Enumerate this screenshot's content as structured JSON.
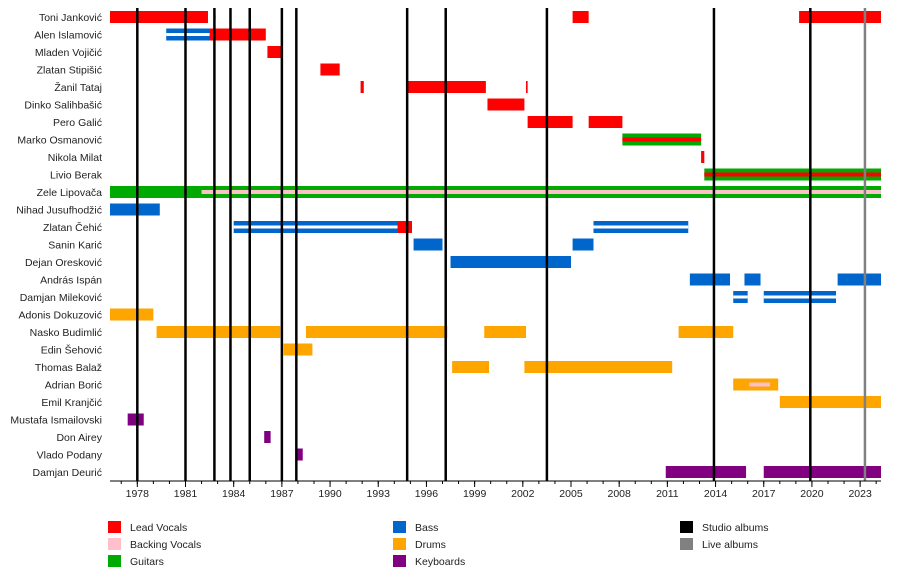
{
  "chart_data": {
    "type": "timeline",
    "title": "",
    "xlabel": "",
    "ylabel": "",
    "xlim": [
      1976.3,
      2024.3
    ],
    "x_ticks": [
      1978,
      1981,
      1984,
      1987,
      1990,
      1993,
      1996,
      1999,
      2002,
      2005,
      2008,
      2011,
      2014,
      2017,
      2020,
      2023
    ],
    "grid": false,
    "legend_position": "bottom",
    "colors": {
      "Lead Vocals": "#ff0000",
      "Backing Vocals": "#ffc0cb",
      "Guitars": "#00aa00",
      "Bass": "#0066cc",
      "Drums": "#ffa500",
      "Keyboards": "#800080",
      "Studio albums": "#000000",
      "Live albums": "#808080"
    },
    "members": [
      "Toni Janković",
      "Alen Islamović",
      "Mladen Vojičić",
      "Zlatan Stipišić",
      "Žanil Tataj",
      "Dinko Salihbašić",
      "Pero Galić",
      "Marko Osmanović",
      "Nikola Milat",
      "Livio Berak",
      "Zele Lipovača",
      "Nihad Jusufhodžić",
      "Zlatan Čehić",
      "Sanin Karić",
      "Dejan Oresković",
      "András Ispán",
      "Damjan Mileković",
      "Adonis Dokuzović",
      "Nasko Budimlić",
      "Edin Šehović",
      "Thomas Balaž",
      "Adrian Borić",
      "Emil Kranjčić",
      "Mustafa Ismailovski",
      "Don Airey",
      "Vlado Podany",
      "Damjan Deurić"
    ],
    "bars": [
      {
        "member": "Toni Janković",
        "role": "Lead Vocals",
        "start": 1976.3,
        "end": 1982.4
      },
      {
        "member": "Toni Janković",
        "role": "Backing Vocals",
        "start": 1982.8,
        "end": 1982.9
      },
      {
        "member": "Toni Janković",
        "role": "Lead Vocals",
        "start": 2005.1,
        "end": 2006.1
      },
      {
        "member": "Toni Janković",
        "role": "Lead Vocals",
        "start": 2019.2,
        "end": 2024.3
      },
      {
        "member": "Alen Islamović",
        "role": "Bass",
        "start": 1979.8,
        "end": 1983.9
      },
      {
        "member": "Alen Islamović",
        "role": "Lead Vocals",
        "start": 1982.5,
        "end": 1986.0
      },
      {
        "member": "Mladen Vojičić",
        "role": "Lead Vocals",
        "start": 1986.1,
        "end": 1987.0
      },
      {
        "member": "Zlatan Stipišić",
        "role": "Lead Vocals",
        "start": 1989.4,
        "end": 1990.6
      },
      {
        "member": "Žanil Tataj",
        "role": "Lead Vocals",
        "start": 1991.9,
        "end": 1992.1
      },
      {
        "member": "Žanil Tataj",
        "role": "Lead Vocals",
        "start": 1994.8,
        "end": 1999.7
      },
      {
        "member": "Žanil Tataj",
        "role": "Lead Vocals",
        "start": 2002.2,
        "end": 2002.3
      },
      {
        "member": "Dinko Salihbašić",
        "role": "Lead Vocals",
        "start": 1999.8,
        "end": 2002.1
      },
      {
        "member": "Pero Galić",
        "role": "Lead Vocals",
        "start": 2002.3,
        "end": 2005.1
      },
      {
        "member": "Pero Galić",
        "role": "Lead Vocals",
        "start": 2006.1,
        "end": 2008.2
      },
      {
        "member": "Marko Osmanović",
        "role": "Guitars",
        "start": 2008.2,
        "end": 2013.1
      },
      {
        "member": "Marko Osmanović",
        "role": "Lead Vocals",
        "start": 2008.2,
        "end": 2013.1
      },
      {
        "member": "Nikola Milat",
        "role": "Lead Vocals",
        "start": 2013.1,
        "end": 2013.3
      },
      {
        "member": "Livio Berak",
        "role": "Guitars",
        "start": 2013.3,
        "end": 2024.3
      },
      {
        "member": "Livio Berak",
        "role": "Lead Vocals",
        "start": 2013.3,
        "end": 2024.3
      },
      {
        "member": "Zele Lipovača",
        "role": "Guitars",
        "start": 1976.3,
        "end": 2024.3
      },
      {
        "member": "Zele Lipovača",
        "role": "Backing Vocals",
        "start": 1982.0,
        "end": 2024.3
      },
      {
        "member": "Nihad Jusufhodžić",
        "role": "Bass",
        "start": 1976.3,
        "end": 1979.4
      },
      {
        "member": "Zlatan Čehić",
        "role": "Bass",
        "start": 1984.0,
        "end": 1995.1
      },
      {
        "member": "Zlatan Čehić",
        "role": "Lead Vocals",
        "start": 1994.2,
        "end": 1995.1
      },
      {
        "member": "Zlatan Čehić",
        "role": "Bass",
        "start": 2006.4,
        "end": 2012.3
      },
      {
        "member": "Sanin Karić",
        "role": "Bass",
        "start": 1995.2,
        "end": 1997.0
      },
      {
        "member": "Sanin Karić",
        "role": "Bass",
        "start": 2005.1,
        "end": 2006.4
      },
      {
        "member": "Dejan Oresković",
        "role": "Bass",
        "start": 1997.5,
        "end": 2005.0
      },
      {
        "member": "András Ispán",
        "role": "Bass",
        "start": 2012.4,
        "end": 2014.9
      },
      {
        "member": "András Ispán",
        "role": "Bass",
        "start": 2015.8,
        "end": 2016.8
      },
      {
        "member": "András Ispán",
        "role": "Bass",
        "start": 2021.6,
        "end": 2024.3
      },
      {
        "member": "Damjan Mileković",
        "role": "Bass",
        "start": 2015.1,
        "end": 2016.0
      },
      {
        "member": "Damjan Mileković",
        "role": "Bass",
        "start": 2017.0,
        "end": 2021.5
      },
      {
        "member": "Adonis Dokuzović",
        "role": "Drums",
        "start": 1976.3,
        "end": 1979.0
      },
      {
        "member": "Nasko Budimlić",
        "role": "Drums",
        "start": 1979.2,
        "end": 1986.9
      },
      {
        "member": "Nasko Budimlić",
        "role": "Drums",
        "start": 1988.5,
        "end": 1997.3
      },
      {
        "member": "Nasko Budimlić",
        "role": "Drums",
        "start": 1999.6,
        "end": 2002.2
      },
      {
        "member": "Nasko Budimlić",
        "role": "Drums",
        "start": 2011.7,
        "end": 2015.1
      },
      {
        "member": "Edin Šehović",
        "role": "Drums",
        "start": 1987.1,
        "end": 1988.9
      },
      {
        "member": "Thomas Balaž",
        "role": "Drums",
        "start": 1997.6,
        "end": 1999.9
      },
      {
        "member": "Thomas Balaž",
        "role": "Drums",
        "start": 2002.1,
        "end": 2011.3
      },
      {
        "member": "Adrian Borić",
        "role": "Drums",
        "start": 2015.1,
        "end": 2017.9
      },
      {
        "member": "Adrian Borić",
        "role": "Backing Vocals",
        "start": 2016.1,
        "end": 2017.4
      },
      {
        "member": "Emil Kranjčić",
        "role": "Drums",
        "start": 2018.0,
        "end": 2024.3
      },
      {
        "member": "Mustafa Ismailovski",
        "role": "Keyboards",
        "start": 1977.4,
        "end": 1978.4
      },
      {
        "member": "Don Airey",
        "role": "Keyboards",
        "start": 1985.9,
        "end": 1986.3
      },
      {
        "member": "Vlado Podany",
        "role": "Keyboards",
        "start": 1987.9,
        "end": 1988.3
      },
      {
        "member": "Damjan Deurić",
        "role": "Keyboards",
        "start": 2010.9,
        "end": 2015.9
      },
      {
        "member": "Damjan Deurić",
        "role": "Keyboards",
        "start": 2017.0,
        "end": 2024.3
      }
    ],
    "studio_albums": [
      1978.0,
      1981.0,
      1982.8,
      1983.8,
      1985.0,
      1987.0,
      1987.9,
      1994.8,
      1997.2,
      2003.5,
      2013.9,
      2019.9
    ],
    "live_albums": [
      2023.3
    ],
    "legend": [
      {
        "label": "Lead Vocals",
        "role": "Lead Vocals"
      },
      {
        "label": "Backing Vocals",
        "role": "Backing Vocals"
      },
      {
        "label": "Guitars",
        "role": "Guitars"
      },
      {
        "label": "Bass",
        "role": "Bass"
      },
      {
        "label": "Drums",
        "role": "Drums"
      },
      {
        "label": "Keyboards",
        "role": "Keyboards"
      },
      {
        "label": "Studio albums",
        "role": "Studio albums"
      },
      {
        "label": "Live albums",
        "role": "Live albums"
      }
    ]
  }
}
